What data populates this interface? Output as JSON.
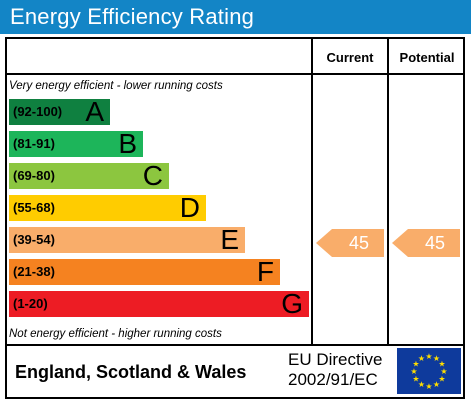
{
  "header": {
    "title": "Energy Efficiency Rating"
  },
  "columns": {
    "current": "Current",
    "potential": "Potential"
  },
  "notes": {
    "top": "Very energy efficient - lower running costs",
    "bottom": "Not energy efficient - higher running costs"
  },
  "bands": [
    {
      "range": "(92-100)",
      "letter": "A",
      "color": "#0f8040"
    },
    {
      "range": "(81-91)",
      "letter": "B",
      "color": "#1db55a"
    },
    {
      "range": "(69-80)",
      "letter": "C",
      "color": "#8cc63f"
    },
    {
      "range": "(55-68)",
      "letter": "D",
      "color": "#ffcc00"
    },
    {
      "range": "(39-54)",
      "letter": "E",
      "color": "#f9ad6a"
    },
    {
      "range": "(21-38)",
      "letter": "F",
      "color": "#f58220"
    },
    {
      "range": "(1-20)",
      "letter": "G",
      "color": "#ed1c24"
    }
  ],
  "ratings": {
    "current": {
      "value": "45",
      "band": "E",
      "color": "#f9ad6a"
    },
    "potential": {
      "value": "45",
      "band": "E",
      "color": "#f9ad6a"
    }
  },
  "footer": {
    "region": "England, Scotland & Wales",
    "directive_line1": "EU Directive",
    "directive_line2": "2002/91/EC"
  },
  "icons": {
    "flag": "eu-flag-icon"
  }
}
